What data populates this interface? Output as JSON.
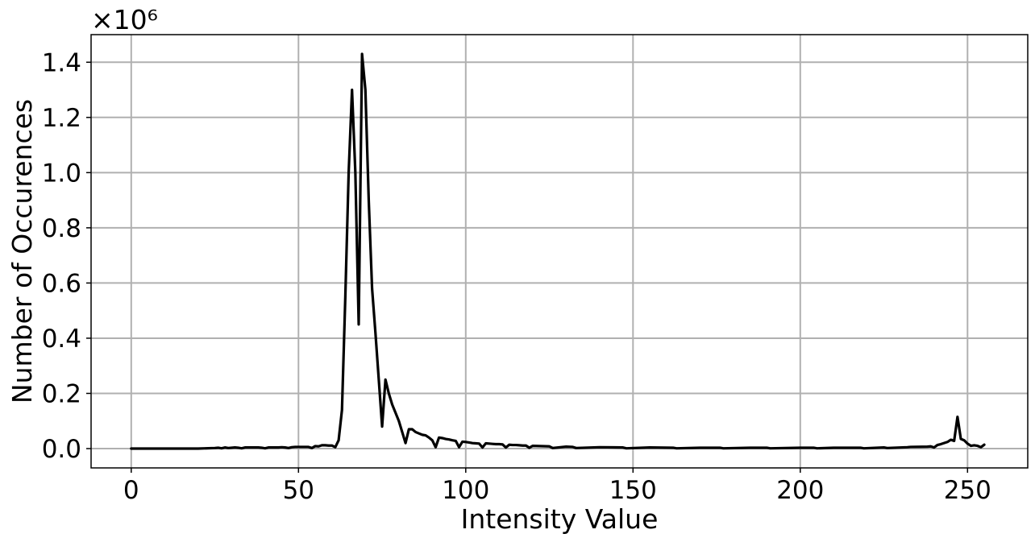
{
  "chart_data": {
    "type": "line",
    "title": "",
    "xlabel": "Intensity Value",
    "ylabel": "Number of Occurences",
    "y_scale_label": "×10⁶",
    "xlim": [
      -12,
      268
    ],
    "ylim": [
      -0.07,
      1.5
    ],
    "x_ticks": [
      0,
      50,
      100,
      150,
      200,
      250
    ],
    "x_tick_labels": [
      "0",
      "50",
      "100",
      "150",
      "200",
      "250"
    ],
    "y_ticks": [
      0.0,
      0.2,
      0.4,
      0.6,
      0.8,
      1.0,
      1.2,
      1.4
    ],
    "y_tick_labels": [
      "0.0",
      "0.2",
      "0.4",
      "0.6",
      "0.8",
      "1.0",
      "1.2",
      "1.4"
    ],
    "grid": true,
    "line_color": "#000000",
    "series": [
      {
        "x": [
          0,
          10,
          20,
          25,
          26,
          27,
          28,
          29,
          30,
          31,
          32,
          33,
          34,
          35,
          36,
          37,
          38,
          39,
          40,
          41,
          42,
          43,
          44,
          45,
          46,
          47,
          48,
          49,
          50,
          51,
          52,
          53,
          54,
          55,
          56,
          57,
          58,
          59,
          60,
          61,
          62,
          63,
          64,
          65,
          66,
          67,
          68,
          69,
          70,
          71,
          72,
          73,
          74,
          75,
          76,
          77,
          78,
          79,
          80,
          81,
          82,
          83,
          84,
          85,
          86,
          87,
          88,
          89,
          90,
          91,
          92,
          93,
          94,
          95,
          96,
          97,
          98,
          99,
          100,
          101,
          102,
          103,
          104,
          105,
          106,
          107,
          108,
          109,
          110,
          111,
          112,
          113,
          114,
          115,
          116,
          117,
          118,
          119,
          120,
          125,
          126,
          130,
          132,
          133,
          140,
          147,
          148,
          155,
          162,
          163,
          170,
          176,
          177,
          185,
          190,
          191,
          200,
          204,
          205,
          210,
          218,
          219,
          225,
          226,
          232,
          233,
          238,
          239,
          240,
          241,
          242,
          243,
          244,
          245,
          246,
          247,
          248,
          249,
          250,
          251,
          252,
          253,
          254,
          255
        ],
        "values": [
          0.0,
          0.0,
          0.0,
          0.002,
          0.003,
          0.001,
          0.004,
          0.002,
          0.003,
          0.004,
          0.003,
          0.001,
          0.004,
          0.004,
          0.004,
          0.004,
          0.004,
          0.003,
          0.001,
          0.004,
          0.004,
          0.004,
          0.004,
          0.005,
          0.004,
          0.002,
          0.005,
          0.006,
          0.006,
          0.006,
          0.006,
          0.006,
          0.002,
          0.009,
          0.008,
          0.012,
          0.012,
          0.011,
          0.011,
          0.005,
          0.03,
          0.14,
          0.55,
          1.0,
          1.3,
          1.0,
          0.45,
          1.43,
          1.3,
          0.9,
          0.58,
          0.42,
          0.25,
          0.08,
          0.25,
          0.2,
          0.16,
          0.13,
          0.1,
          0.06,
          0.02,
          0.07,
          0.07,
          0.06,
          0.055,
          0.05,
          0.048,
          0.04,
          0.03,
          0.005,
          0.04,
          0.038,
          0.035,
          0.033,
          0.03,
          0.028,
          0.005,
          0.025,
          0.024,
          0.022,
          0.02,
          0.019,
          0.018,
          0.004,
          0.019,
          0.018,
          0.017,
          0.016,
          0.016,
          0.015,
          0.004,
          0.014,
          0.013,
          0.013,
          0.012,
          0.011,
          0.011,
          0.003,
          0.01,
          0.008,
          0.002,
          0.007,
          0.006,
          0.002,
          0.005,
          0.004,
          0.001,
          0.004,
          0.003,
          0.001,
          0.003,
          0.003,
          0.001,
          0.003,
          0.003,
          0.001,
          0.003,
          0.003,
          0.001,
          0.003,
          0.003,
          0.001,
          0.004,
          0.002,
          0.005,
          0.006,
          0.007,
          0.008,
          0.004,
          0.013,
          0.016,
          0.02,
          0.024,
          0.032,
          0.028,
          0.115,
          0.035,
          0.03,
          0.018,
          0.01,
          0.012,
          0.01,
          0.005,
          0.014
        ]
      }
    ]
  }
}
